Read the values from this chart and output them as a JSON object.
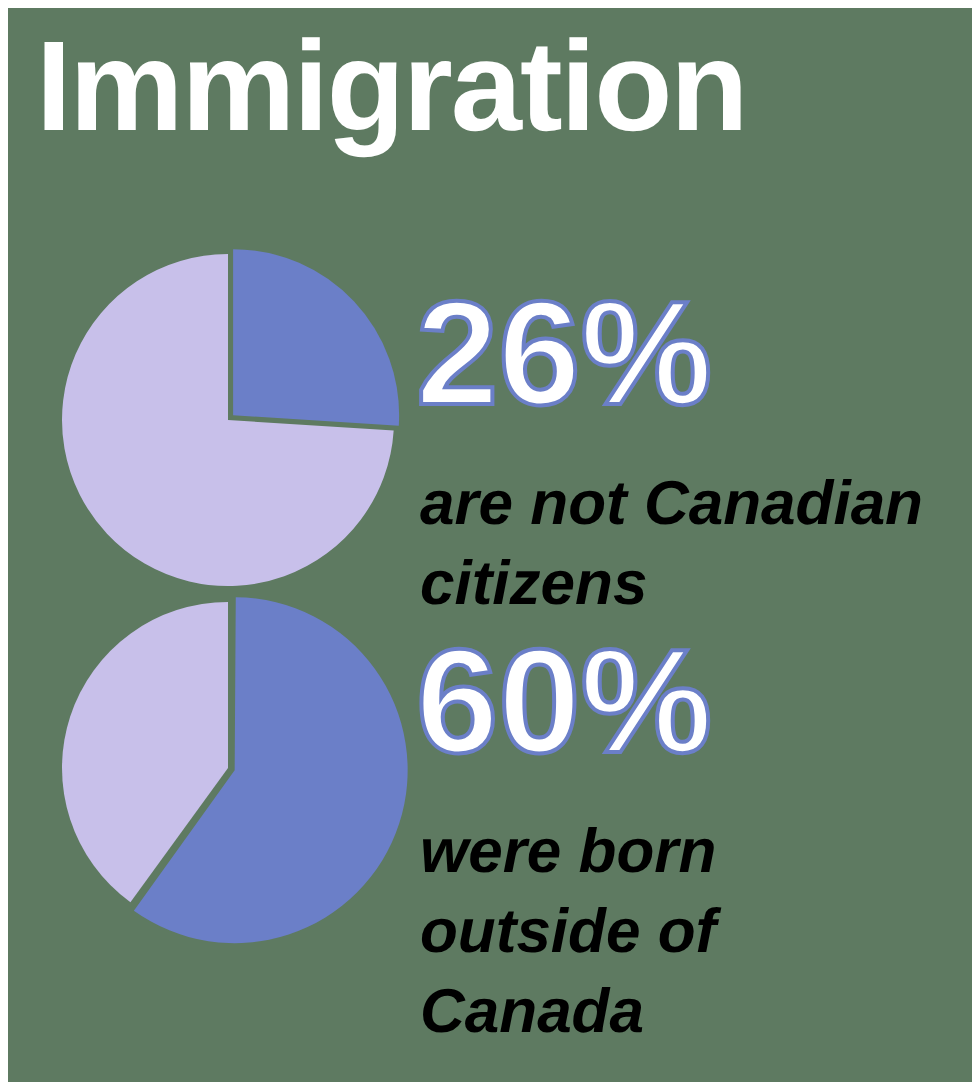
{
  "chart_data": [
    {
      "type": "pie",
      "title": "Immigration",
      "categories": [
        null,
        null
      ],
      "values": [
        26,
        74
      ],
      "colors": [
        "#6b7fc8",
        "#c8c0ea"
      ],
      "value_labels": [
        "26%",
        null
      ],
      "annotations": [
        "are not Canadian citizens"
      ]
    },
    {
      "type": "pie",
      "categories": [
        null,
        null
      ],
      "values": [
        60,
        40
      ],
      "colors": [
        "#6b7fc8",
        "#c8c0ea"
      ],
      "value_labels": [
        "60%",
        null
      ],
      "annotations": [
        "were born outside of Canada"
      ]
    }
  ]
}
